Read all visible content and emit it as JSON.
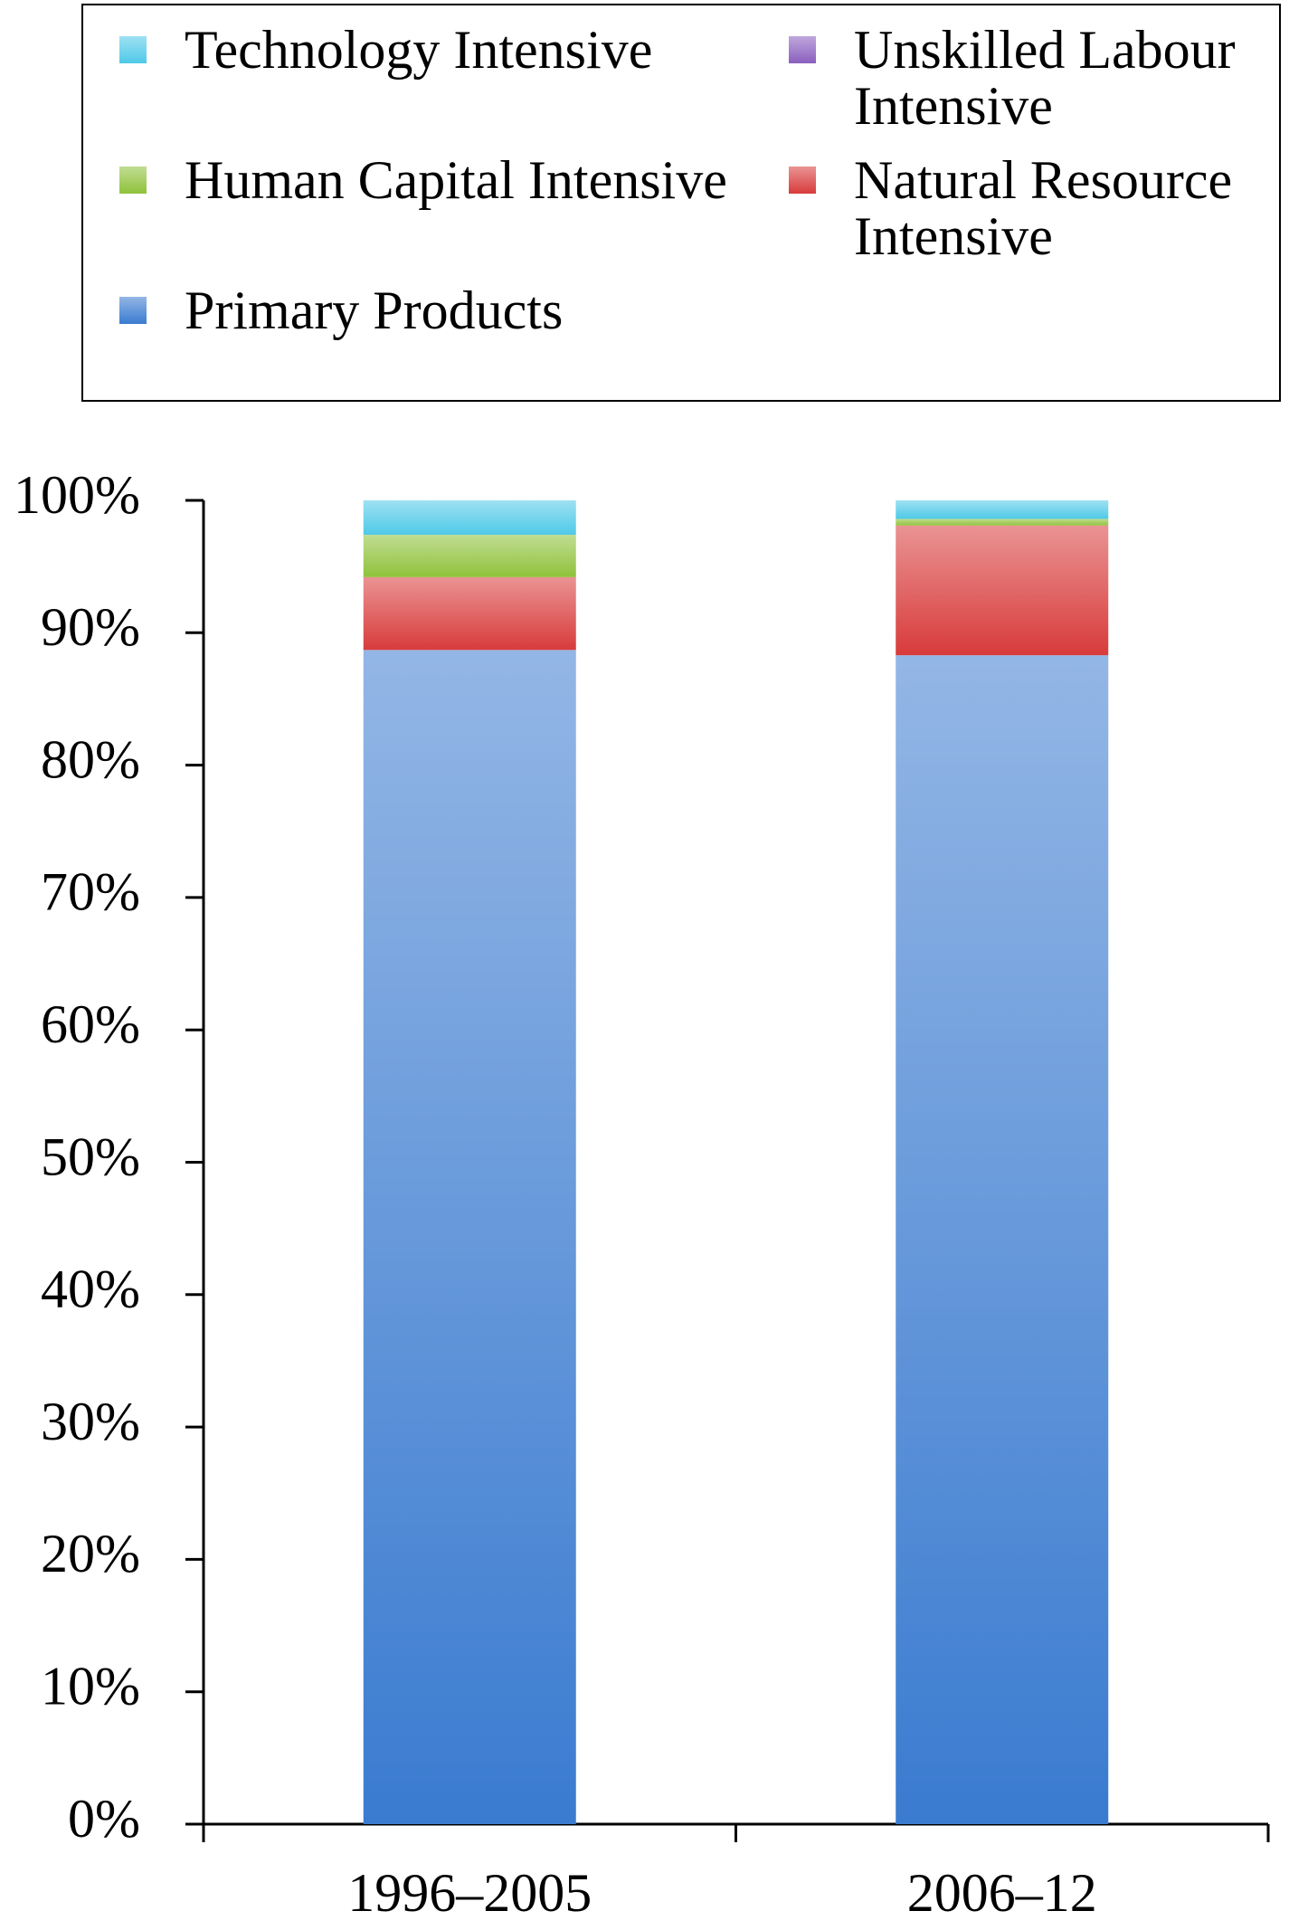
{
  "chart_data": {
    "type": "stacked_bar",
    "categories": [
      "1996–2005",
      "2006–12"
    ],
    "series": [
      {
        "name": "Primary Products",
        "color": "#3a7bd0",
        "values": [
          88.7,
          88.3
        ]
      },
      {
        "name": "Natural Resource Intensive",
        "color": "#d83b3b",
        "values": [
          5.5,
          9.8
        ]
      },
      {
        "name": "Human Capital Intensive",
        "color": "#8fc23a",
        "values": [
          3.2,
          0.5
        ]
      },
      {
        "name": "Unskilled Labour Intensive",
        "color": "#8a5fbf",
        "values": [
          0,
          0
        ]
      },
      {
        "name": "Technology Intensive",
        "color": "#4fc9e8",
        "values": [
          2.6,
          1.4
        ]
      }
    ],
    "ylim": [
      0,
      100
    ],
    "yticks": [
      {
        "value": 0,
        "label": "0%"
      },
      {
        "value": 10,
        "label": "10%"
      },
      {
        "value": 20,
        "label": "20%"
      },
      {
        "value": 30,
        "label": "30%"
      },
      {
        "value": 40,
        "label": "40%"
      },
      {
        "value": 50,
        "label": "50%"
      },
      {
        "value": 60,
        "label": "60%"
      },
      {
        "value": 70,
        "label": "70%"
      },
      {
        "value": 80,
        "label": "80%"
      },
      {
        "value": 90,
        "label": "90%"
      },
      {
        "value": 100,
        "label": "100%"
      }
    ],
    "grid": false,
    "legend": "top"
  }
}
